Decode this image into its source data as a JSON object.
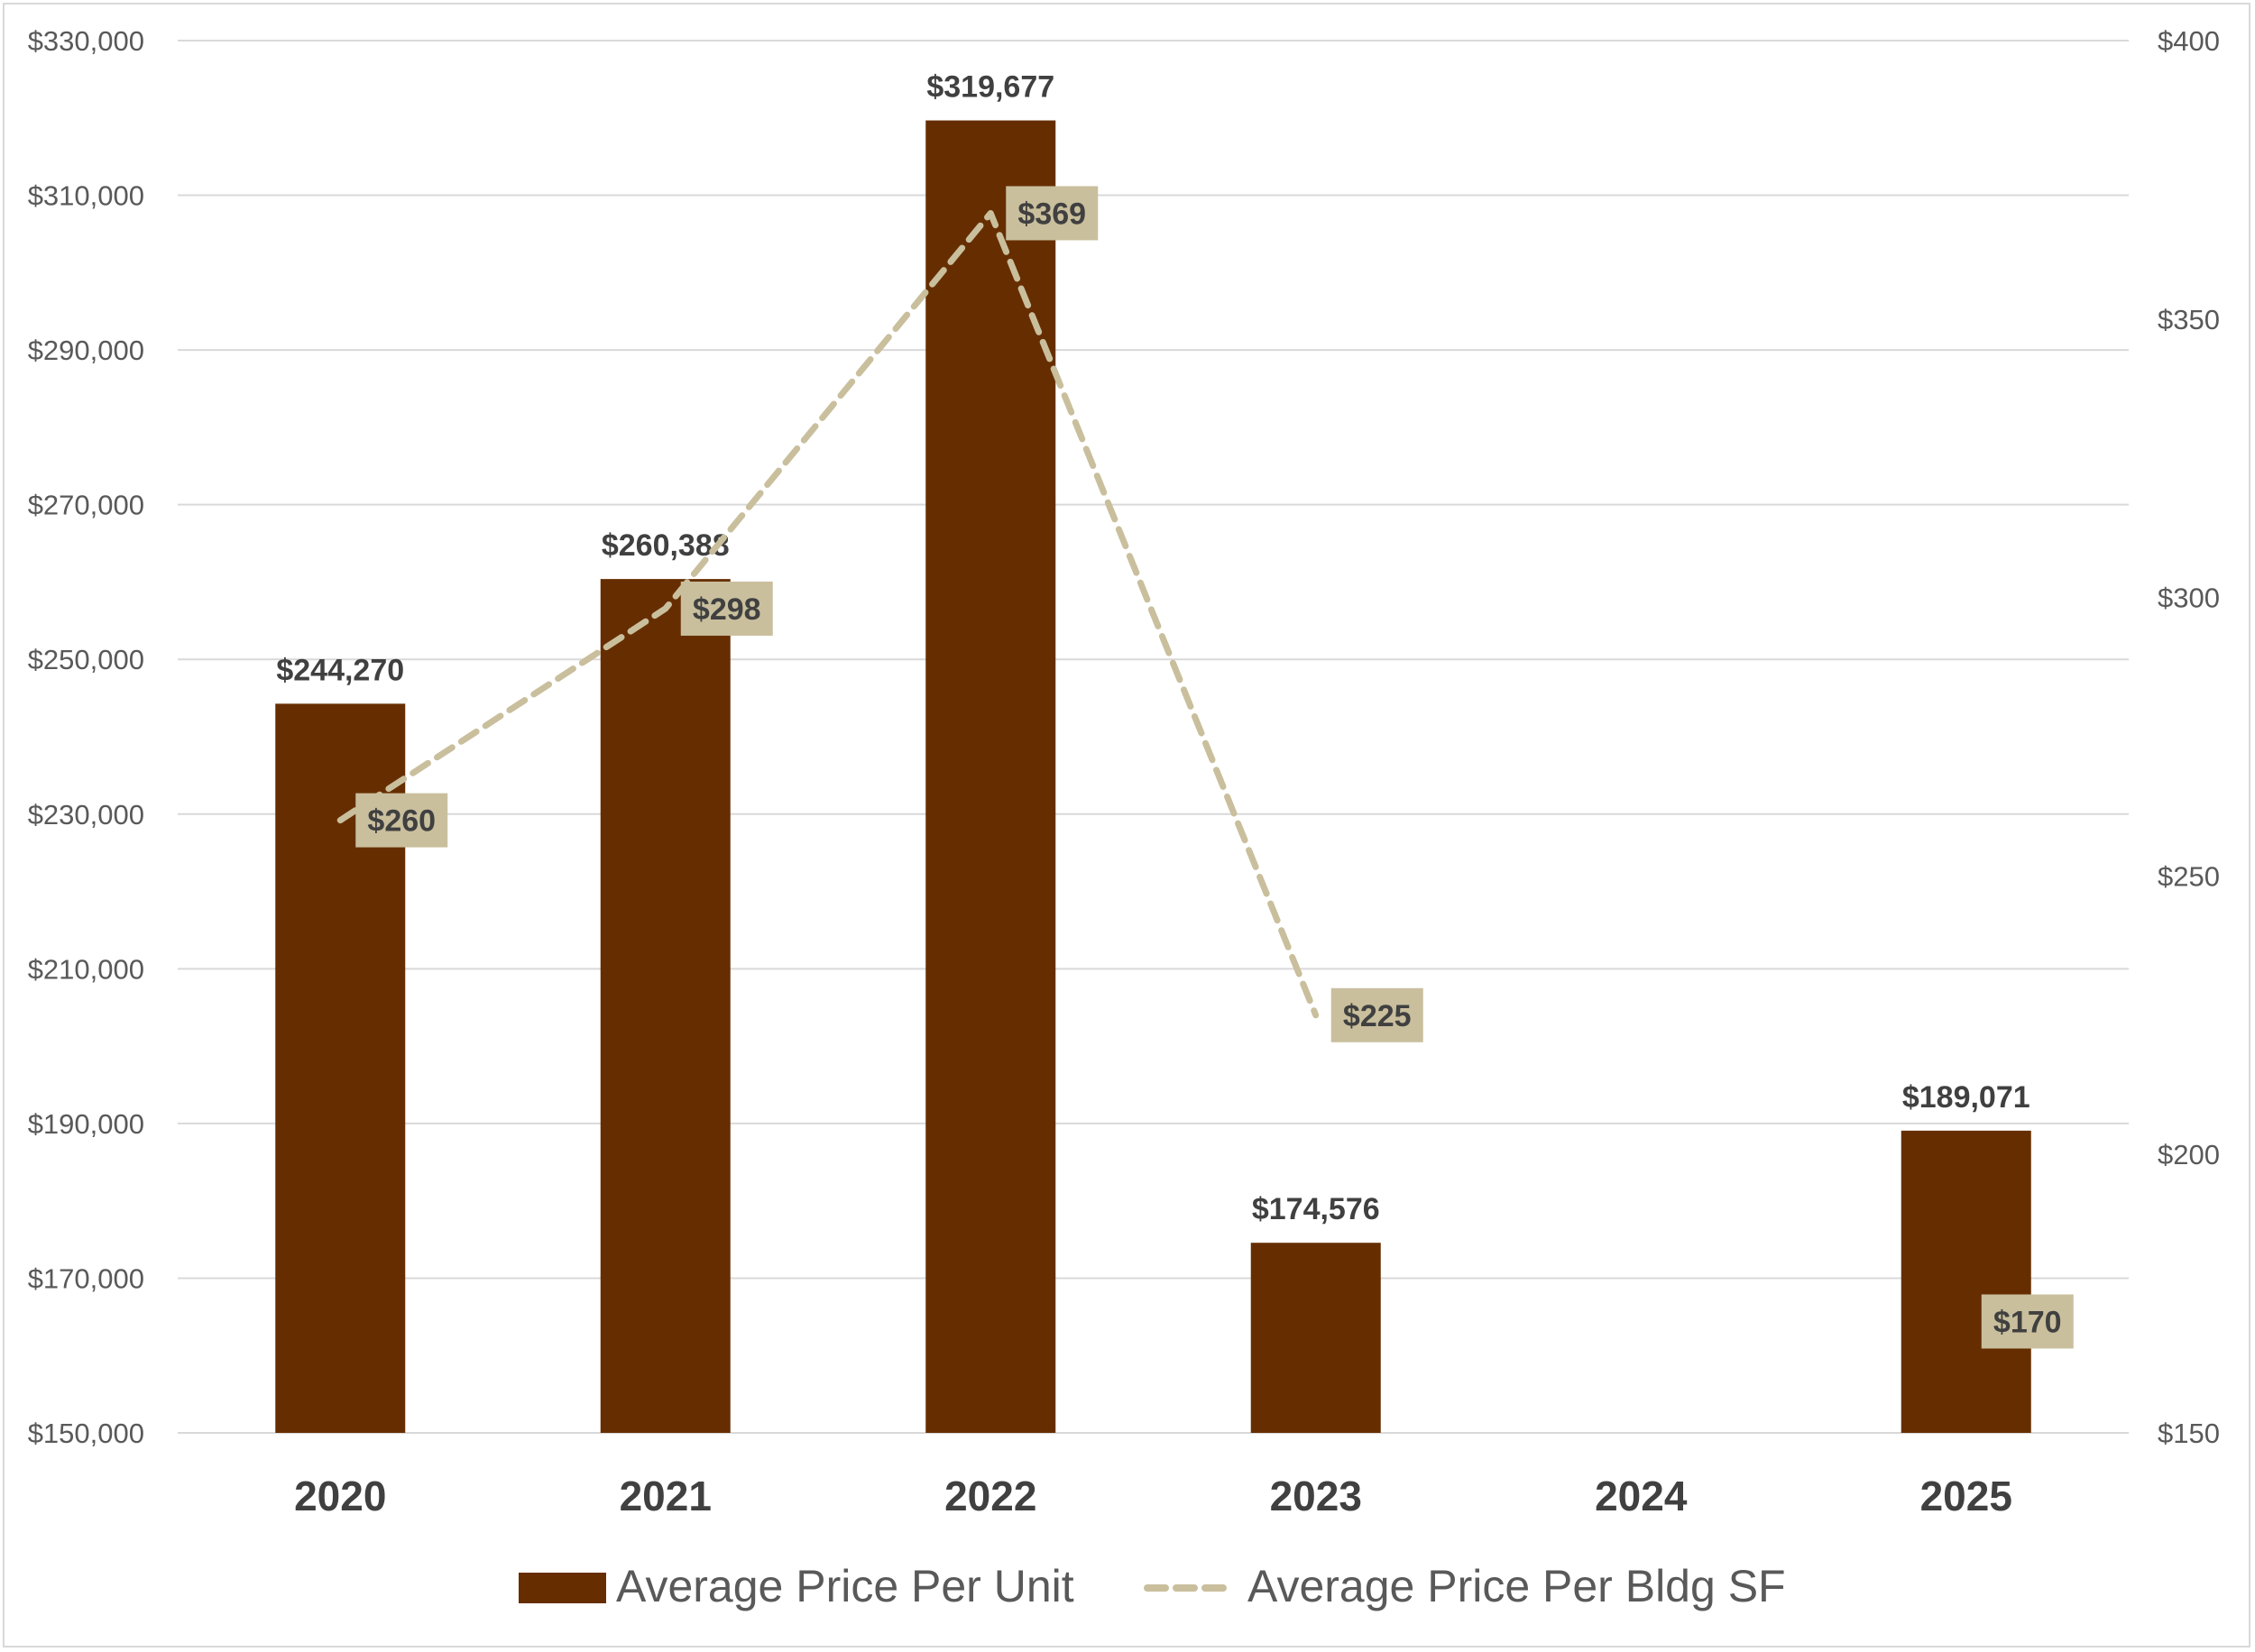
{
  "chart_data": {
    "type": "bar",
    "categories": [
      "2020",
      "2021",
      "2022",
      "2023",
      "2024",
      "2025"
    ],
    "series": [
      {
        "name": "Average Price Per Unit",
        "type": "bar",
        "axis": "left",
        "values": [
          244270,
          260388,
          319677,
          174576,
          null,
          189071
        ],
        "labels": [
          "$244,270",
          "$260,388",
          "$319,677",
          "$174,576",
          "",
          "$189,071"
        ]
      },
      {
        "name": "Average Price Per Bldg SF",
        "type": "line",
        "axis": "right",
        "style": "dashed",
        "values": [
          260,
          298,
          369,
          225,
          null,
          170
        ],
        "labels": [
          "$260",
          "$298",
          "$369",
          "$225",
          "",
          "$170"
        ]
      }
    ],
    "y_left": {
      "range": [
        150000,
        330000
      ],
      "ticks": [
        150000,
        170000,
        190000,
        210000,
        230000,
        250000,
        270000,
        290000,
        310000,
        330000
      ],
      "tick_labels": [
        "$150,000",
        "$170,000",
        "$190,000",
        "$210,000",
        "$230,000",
        "$250,000",
        "$270,000",
        "$290,000",
        "$310,000",
        "$330,000"
      ]
    },
    "y_right": {
      "range": [
        150,
        400
      ],
      "ticks": [
        150,
        200,
        250,
        300,
        350,
        400
      ],
      "tick_labels": [
        "$150",
        "$200",
        "$250",
        "$300",
        "$350",
        "$400"
      ]
    },
    "grid": true,
    "legend": "bottom",
    "colors": {
      "bar": "#662e00",
      "line": "#c9bf9d",
      "label_box": "#c9bf9d"
    }
  }
}
